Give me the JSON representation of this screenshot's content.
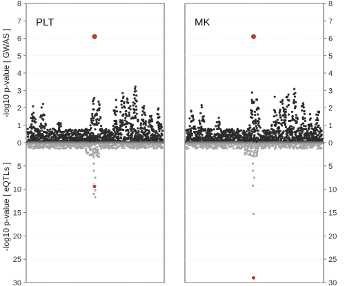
{
  "panels": [
    {
      "label": "PLT",
      "gwas_highlight": [
        {
          "x": 0.495,
          "y": 6.1
        }
      ],
      "eqtl_highlight": [
        {
          "x": 0.495,
          "y": 9.4
        }
      ]
    },
    {
      "label": "MK",
      "gwas_highlight": [
        {
          "x": 0.495,
          "y": 6.1
        }
      ],
      "eqtl_highlight": [
        {
          "x": 0.495,
          "y": 29.0
        }
      ]
    }
  ],
  "axis_labels": {
    "top": "-log10 p-value  [ GWAS ]",
    "bottom": "-log10 p-value  [ eQTLs ]"
  },
  "chart_data": {
    "type": "scatter",
    "title": "",
    "top_axis": {
      "ylabel": "-log10 p-value  [ GWAS ]",
      "ylim": [
        0,
        8
      ],
      "ticks": [
        "0",
        "1",
        "2",
        "3",
        "4",
        "5",
        "6",
        "7",
        "8"
      ]
    },
    "bottom_axis": {
      "ylabel": "-log10 p-value  [ eQTLs ]",
      "ylim": [
        0,
        30
      ],
      "ticks": [
        "0",
        "5",
        "10",
        "15",
        "20",
        "25",
        "30"
      ],
      "inverted": true
    },
    "grid": "horizontal",
    "colors": {
      "gwas": "#2b2b2b",
      "eqtl": "#a6a6a6",
      "highlight": "#c0392b"
    },
    "gwas_peaks": [
      {
        "x": 0.05,
        "y": 2.1
      },
      {
        "x": 0.12,
        "y": 2.35
      },
      {
        "x": 0.24,
        "y": 1.5
      },
      {
        "x": 0.49,
        "y": 3.15
      },
      {
        "x": 0.52,
        "y": 2.6
      },
      {
        "x": 0.65,
        "y": 2.7
      },
      {
        "x": 0.7,
        "y": 2.9
      },
      {
        "x": 0.74,
        "y": 3.05
      },
      {
        "x": 0.79,
        "y": 3.25
      },
      {
        "x": 0.85,
        "y": 2.3
      },
      {
        "x": 0.9,
        "y": 1.7
      },
      {
        "x": 0.96,
        "y": 2.0
      }
    ],
    "eqtl_tail_plt": [
      {
        "x": 0.49,
        "y": 4.5
      },
      {
        "x": 0.49,
        "y": 6.0
      },
      {
        "x": 0.5,
        "y": 7.5
      },
      {
        "x": 0.49,
        "y": 9.0
      },
      {
        "x": 0.5,
        "y": 10.2
      },
      {
        "x": 0.49,
        "y": 11.0
      },
      {
        "x": 0.5,
        "y": 11.7
      }
    ],
    "eqtl_tail_mk": [
      {
        "x": 0.49,
        "y": 4.5
      },
      {
        "x": 0.49,
        "y": 6.0
      },
      {
        "x": 0.5,
        "y": 7.5
      },
      {
        "x": 0.49,
        "y": 9.2
      },
      {
        "x": 0.495,
        "y": 15.3
      }
    ]
  }
}
